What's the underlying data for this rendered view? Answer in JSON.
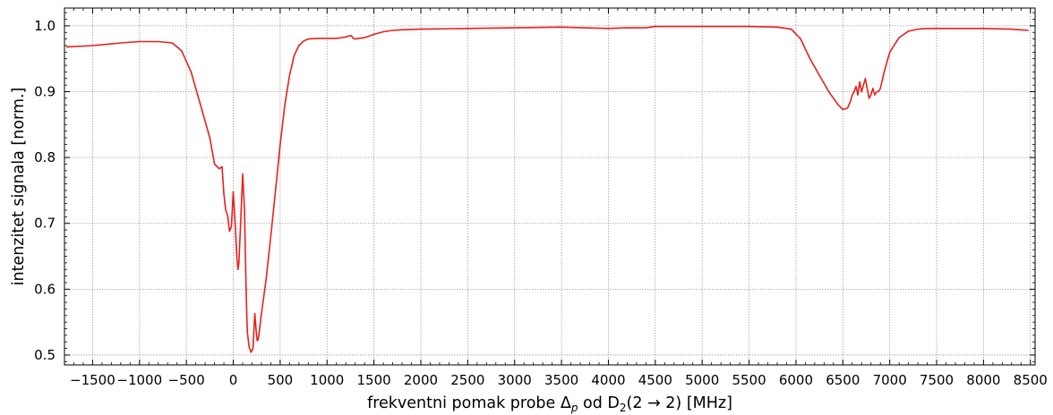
{
  "chart_data": {
    "type": "line",
    "title": "",
    "xlabel": {
      "prefix": "frekventni pomak probe Δ",
      "sub1": "p",
      "mid": " od D",
      "sub2": "2",
      "suffix": "(2 → 2) [MHz]"
    },
    "ylabel": "intenzitet signala [norm.]",
    "xlim": [
      -1800,
      8550
    ],
    "ylim": [
      0.485,
      1.027
    ],
    "grid": true,
    "legend": "none",
    "x_ticks": [
      -1500,
      -1000,
      -500,
      0,
      500,
      1000,
      1500,
      2000,
      2500,
      3000,
      3500,
      4000,
      4500,
      5000,
      5500,
      6000,
      6500,
      7000,
      7500,
      8000,
      8500
    ],
    "x_tick_labels": [
      "−1500",
      "−1000",
      "−500",
      "0",
      "500",
      "1000",
      "1500",
      "2000",
      "2500",
      "3000",
      "3500",
      "4000",
      "4500",
      "5000",
      "5500",
      "6000",
      "6500",
      "7000",
      "7500",
      "8000",
      "8500"
    ],
    "y_ticks": [
      0.5,
      0.6,
      0.7,
      0.8,
      0.9,
      1.0
    ],
    "y_tick_labels": [
      "0.5",
      "0.6",
      "0.7",
      "0.8",
      "0.9",
      "1.0"
    ],
    "series": [
      {
        "color": "#e8201c",
        "x": [
          -1780,
          -1500,
          -1200,
          -1000,
          -800,
          -650,
          -550,
          -450,
          -350,
          -250,
          -200,
          -150,
          -120,
          -100,
          -80,
          -60,
          -40,
          -20,
          0,
          20,
          40,
          50,
          60,
          80,
          100,
          120,
          130,
          140,
          150,
          170,
          190,
          210,
          230,
          245,
          255,
          265,
          280,
          300,
          350,
          400,
          450,
          500,
          550,
          600,
          650,
          700,
          750,
          800,
          900,
          1000,
          1100,
          1200,
          1240,
          1260,
          1280,
          1300,
          1400,
          1500,
          1600,
          1700,
          1800,
          2000,
          2500,
          3000,
          3500,
          4000,
          4200,
          4400,
          4500,
          5000,
          5500,
          5800,
          5950,
          6050,
          6150,
          6250,
          6350,
          6450,
          6500,
          6550,
          6580,
          6600,
          6620,
          6640,
          6660,
          6680,
          6700,
          6720,
          6740,
          6760,
          6780,
          6800,
          6820,
          6840,
          6860,
          6880,
          6900,
          6950,
          7000,
          7100,
          7200,
          7300,
          7400,
          7500,
          7600,
          8000,
          8300,
          8480
        ],
        "y": [
          0.968,
          0.97,
          0.974,
          0.976,
          0.976,
          0.974,
          0.962,
          0.93,
          0.88,
          0.83,
          0.79,
          0.783,
          0.786,
          0.745,
          0.72,
          0.712,
          0.688,
          0.695,
          0.748,
          0.7,
          0.645,
          0.63,
          0.64,
          0.705,
          0.775,
          0.72,
          0.65,
          0.58,
          0.535,
          0.512,
          0.504,
          0.51,
          0.563,
          0.535,
          0.522,
          0.523,
          0.538,
          0.562,
          0.615,
          0.68,
          0.75,
          0.82,
          0.88,
          0.925,
          0.955,
          0.97,
          0.977,
          0.98,
          0.981,
          0.981,
          0.981,
          0.983,
          0.985,
          0.985,
          0.981,
          0.98,
          0.982,
          0.987,
          0.991,
          0.993,
          0.994,
          0.995,
          0.996,
          0.997,
          0.998,
          0.996,
          0.997,
          0.997,
          0.999,
          0.999,
          0.999,
          0.998,
          0.995,
          0.98,
          0.95,
          0.925,
          0.9,
          0.88,
          0.873,
          0.875,
          0.885,
          0.895,
          0.9,
          0.908,
          0.895,
          0.915,
          0.9,
          0.91,
          0.92,
          0.905,
          0.89,
          0.895,
          0.905,
          0.895,
          0.9,
          0.9,
          0.905,
          0.935,
          0.96,
          0.982,
          0.992,
          0.995,
          0.996,
          0.996,
          0.996,
          0.996,
          0.995,
          0.993
        ]
      }
    ]
  }
}
